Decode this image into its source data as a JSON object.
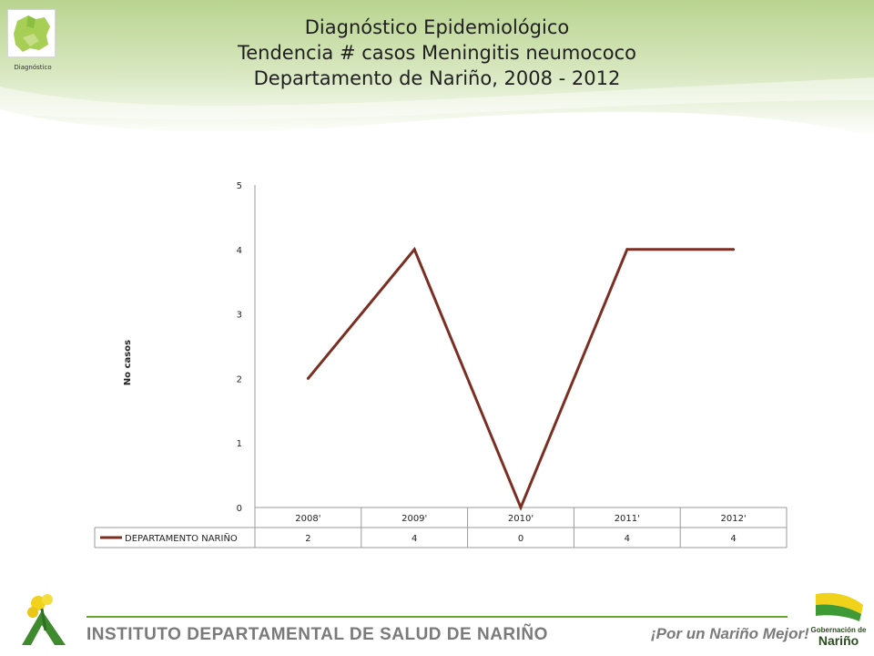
{
  "header": {
    "logo_caption": "Diagnóstico",
    "title_lines": [
      "Diagnóstico Epidemiológico",
      "Tendencia # casos Meningitis neumococo",
      "Departamento de Nariño,  2008 - 2012"
    ]
  },
  "chart_data": {
    "type": "line",
    "categories": [
      "2008'",
      "2009'",
      "2010'",
      "2011'",
      "2012'"
    ],
    "series": [
      {
        "name": "DEPARTAMENTO NARIÑO",
        "values": [
          2,
          4,
          0,
          4,
          4
        ],
        "color": "#7b2e22"
      }
    ],
    "title": "",
    "xlabel": "",
    "ylabel": "No casos",
    "ylim": [
      0,
      5
    ],
    "yticks": [
      0,
      1,
      2,
      3,
      4,
      5
    ],
    "grid": false,
    "data_table": true,
    "legend": "data-table"
  },
  "footer": {
    "institute": "INSTITUTO DEPARTAMENTAL DE SALUD DE NARIÑO",
    "slogan": "¡Por un Nariño Mejor!",
    "accent_color": "#6aa52c"
  },
  "icons": {
    "header_logo": "narino-map-logo-icon",
    "footer_left": "ids-flower-logo-icon",
    "footer_right": "gobernacion-narino-logo-icon"
  }
}
